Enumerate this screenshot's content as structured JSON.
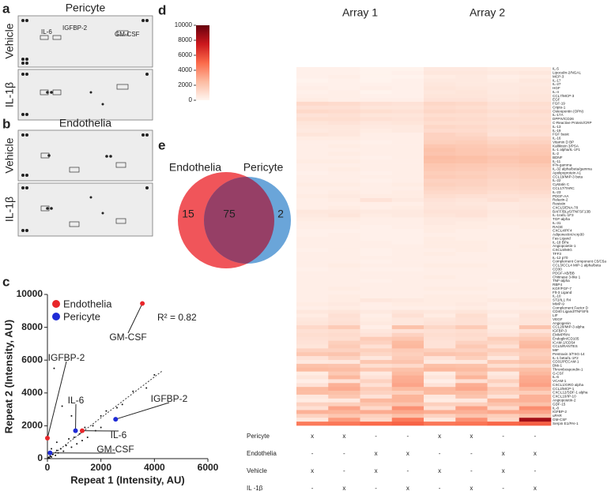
{
  "panel_letters": [
    "a",
    "b",
    "c",
    "d",
    "e"
  ],
  "blots": {
    "a": {
      "title": "Pericyte",
      "rows": [
        "Vehicle",
        "IL-1β"
      ],
      "spots": [
        "IL-6",
        "IGFBP-2",
        "GM-CSF"
      ]
    },
    "b": {
      "title": "Endothelia",
      "rows": [
        "Vehicle",
        "IL-1β"
      ]
    }
  },
  "chart_data": [
    {
      "type": "scatter",
      "xlabel": "Repeat 1 (Intensity, AU)",
      "ylabel": "Repeat 2 (Intensity, AU)",
      "xlim": [
        0,
        6000
      ],
      "ylim": [
        0,
        10000
      ],
      "xticks": [
        0,
        2000,
        4000,
        6000
      ],
      "yticks": [
        0,
        2000,
        4000,
        6000,
        8000,
        10000
      ],
      "annotation": "R² = 0.82",
      "legend": "top-left",
      "fit_line": {
        "x": [
          0,
          4300
        ],
        "y": [
          0,
          5350
        ]
      },
      "other_points": {
        "color": "#111",
        "x": [
          20,
          50,
          80,
          100,
          150,
          200,
          300,
          350,
          400,
          500,
          600,
          700,
          800,
          900,
          1000,
          1100,
          1200,
          1400,
          1500,
          1700,
          1800,
          2000,
          2200,
          2600,
          2800,
          3200,
          3700,
          4000,
          350,
          150,
          900,
          250,
          550,
          2000,
          1300
        ],
        "y": [
          30,
          80,
          40,
          150,
          100,
          250,
          200,
          500,
          350,
          600,
          450,
          800,
          1200,
          700,
          1300,
          900,
          1500,
          1900,
          1300,
          2000,
          1700,
          2600,
          2900,
          3100,
          3300,
          4100,
          4300,
          5100,
          1000,
          600,
          2600,
          5500,
          3200,
          1900,
          1100
        ]
      },
      "series": [
        {
          "name": "Endothelia",
          "color": "#e8262a",
          "x": [
            3550,
            0,
            1300
          ],
          "y": [
            9450,
            1250,
            1700
          ],
          "labels": [
            "GM-CSF",
            "IGFBP-2",
            "IL-6"
          ]
        },
        {
          "name": "Pericyte",
          "color": "#1f2bd6",
          "x": [
            2550,
            1050,
            100
          ],
          "y": [
            2400,
            1700,
            350
          ],
          "labels": [
            "IGFBP-2",
            "IL-6",
            "GM-CSF"
          ]
        }
      ]
    },
    {
      "type": "heatmap",
      "columns_titles": [
        "Array 1",
        "Array 2"
      ],
      "clim": [
        0,
        10000
      ],
      "cticks": [
        0,
        2000,
        4000,
        6000,
        8000,
        10000
      ],
      "colors": [
        "#fff5f0",
        "#fcbba1",
        "#fb6a4a",
        "#cb181d",
        "#67000d"
      ],
      "rows": [
        "IL-5",
        "Lipocalin-2/NGAL",
        "MCP-3",
        "IL-17",
        "IL-27",
        "HGF",
        "IL-4",
        "CCL7/MCP-3",
        "EGF",
        "FGF-19",
        "Cripto-1",
        "Osteopontin (OPN)",
        "IL-17A",
        "DPPIV/CD26",
        "C-Reactive Protein/CRP",
        "IL-13",
        "IL-19",
        "FGF basic",
        "IL-16",
        "Vitamin D BP",
        "Kallikrein 3/PSA",
        "IL-1 alpha/IL-1F1",
        "IL-2",
        "BDNF",
        "IL-11",
        "IFN-gamma",
        "IL-32 alpha/beta/gamma",
        "Apolipoprotein A1",
        "CCL19/MIP-3 beta",
        "IL-22",
        "Cystatin C",
        "CCL17/TARC",
        "IL-23",
        "PDGF-AA",
        "Relaxin-2",
        "Resistin",
        "CXCL5/ENA-78",
        "BAFF/BLyS/TNFSF13B",
        "IL-1ra/IL-1F3",
        "TGF-alpha",
        "IL-31",
        "RAGE",
        "CXCL4/PF4",
        "Adiponectin/Acrp30",
        "Fas Ligand",
        "IL-18 BPa",
        "Angiopoietin-1",
        "CXCL9/MIG",
        "TFF3",
        "IL-12 p70",
        "Complement Component C5/C5a",
        "CCL3/CCL4 MIP-1 alpha/beta",
        "CD30",
        "PDGF-AB/BB",
        "Chitinase 3-like 1",
        "TNF-alpha",
        "RBP4",
        "KGF/FGF-7",
        "Flt-3 Ligand",
        "IL-10",
        "ST2/IL1 R4",
        "MMP-9",
        "Complement Factor D",
        "CD40 Ligand/TNFSF5",
        "LIF",
        "VEGF",
        "Angiogenin",
        "CCL20/MIP-3 alpha",
        "IGFBP-3",
        "EMMPRIN",
        "Endoglin/CD105",
        "ICAM-1/CD54",
        "CCL5/RANTES",
        "MIF",
        "Pentraxin 3/TSG-14",
        "IL-1 beta/IL-1F2",
        "CD31/PECAM-1",
        "Dkk-1",
        "Thrombospondin-1",
        "G-CSF",
        "IL-6",
        "VCAM-1",
        "CXCL1/GRO alpha",
        "CCL2/MCP-1",
        "CXCL12/SDF-1 alpha",
        "CXCL10/IP-10",
        "Angiopoietin-2",
        "GDF-15",
        "IL-8",
        "IGFBP-2",
        "uPAR",
        "GM-CSF",
        "Serpin E1/PAI-1"
      ],
      "values": [
        [
          200,
          200,
          100,
          100,
          500,
          500,
          400,
          400
        ],
        [
          200,
          200,
          100,
          200,
          600,
          600,
          500,
          600
        ],
        [
          200,
          300,
          100,
          100,
          400,
          500,
          300,
          400
        ],
        [
          100,
          200,
          100,
          200,
          500,
          500,
          400,
          600
        ],
        [
          200,
          200,
          200,
          200,
          600,
          500,
          500,
          500
        ],
        [
          300,
          200,
          300,
          200,
          700,
          600,
          500,
          600
        ],
        [
          200,
          300,
          100,
          200,
          600,
          700,
          500,
          600
        ],
        [
          300,
          300,
          200,
          200,
          700,
          700,
          600,
          700
        ],
        [
          400,
          300,
          300,
          300,
          800,
          800,
          600,
          700
        ],
        [
          1200,
          1100,
          900,
          800,
          1300,
          1200,
          900,
          1000
        ],
        [
          900,
          900,
          700,
          700,
          1100,
          1000,
          800,
          900
        ],
        [
          1200,
          1100,
          1000,
          900,
          1300,
          1200,
          1000,
          1100
        ],
        [
          800,
          900,
          700,
          700,
          1000,
          1000,
          800,
          900
        ],
        [
          1000,
          1000,
          900,
          800,
          1200,
          1100,
          1000,
          1000
        ],
        [
          700,
          800,
          600,
          700,
          1000,
          1000,
          900,
          900
        ],
        [
          600,
          600,
          500,
          500,
          1300,
          1200,
          1000,
          1100
        ],
        [
          500,
          600,
          400,
          500,
          1100,
          1100,
          900,
          1000
        ],
        [
          700,
          600,
          300,
          300,
          1500,
          1300,
          800,
          900
        ],
        [
          400,
          400,
          300,
          300,
          1500,
          1500,
          1200,
          1300
        ],
        [
          300,
          300,
          200,
          300,
          1600,
          1700,
          1400,
          1500
        ],
        [
          300,
          400,
          300,
          300,
          2000,
          1900,
          1700,
          1800
        ],
        [
          300,
          300,
          300,
          300,
          2200,
          2000,
          1900,
          1900
        ],
        [
          300,
          400,
          300,
          300,
          2100,
          2000,
          1800,
          2000
        ],
        [
          300,
          300,
          200,
          300,
          2400,
          2300,
          2100,
          2200
        ],
        [
          400,
          400,
          300,
          300,
          2300,
          2200,
          2000,
          2200
        ],
        [
          300,
          300,
          300,
          300,
          2000,
          1900,
          1800,
          1900
        ],
        [
          300,
          400,
          300,
          300,
          1900,
          1800,
          1600,
          1700
        ],
        [
          200,
          300,
          200,
          300,
          1700,
          1600,
          1500,
          1600
        ],
        [
          300,
          300,
          300,
          300,
          1800,
          1700,
          1500,
          1600
        ],
        [
          300,
          300,
          200,
          300,
          1500,
          1500,
          1300,
          1400
        ],
        [
          400,
          400,
          300,
          400,
          1600,
          1500,
          1300,
          1400
        ],
        [
          300,
          300,
          300,
          300,
          1400,
          1300,
          1200,
          1300
        ],
        [
          300,
          400,
          300,
          400,
          1200,
          1200,
          1000,
          1100
        ],
        [
          400,
          500,
          400,
          400,
          1000,
          900,
          800,
          900
        ],
        [
          300,
          400,
          800,
          500,
          800,
          700,
          900,
          700
        ],
        [
          300,
          300,
          300,
          300,
          700,
          600,
          500,
          600
        ],
        [
          300,
          400,
          300,
          400,
          700,
          700,
          500,
          600
        ],
        [
          600,
          600,
          500,
          500,
          800,
          800,
          600,
          700
        ],
        [
          500,
          700,
          400,
          500,
          700,
          800,
          500,
          600
        ],
        [
          400,
          400,
          300,
          300,
          500,
          500,
          400,
          400
        ],
        [
          300,
          300,
          300,
          300,
          500,
          400,
          400,
          400
        ],
        [
          300,
          300,
          200,
          300,
          400,
          400,
          300,
          400
        ],
        [
          200,
          200,
          200,
          200,
          400,
          300,
          300,
          300
        ],
        [
          200,
          300,
          200,
          200,
          300,
          300,
          300,
          300
        ],
        [
          300,
          300,
          200,
          200,
          400,
          300,
          300,
          300
        ],
        [
          300,
          300,
          300,
          200,
          400,
          400,
          300,
          300
        ],
        [
          300,
          300,
          300,
          300,
          400,
          400,
          300,
          400
        ],
        [
          200,
          300,
          200,
          300,
          300,
          400,
          300,
          300
        ],
        [
          300,
          300,
          200,
          300,
          400,
          300,
          300,
          300
        ],
        [
          300,
          300,
          300,
          300,
          300,
          300,
          300,
          300
        ],
        [
          300,
          300,
          200,
          300,
          300,
          300,
          300,
          300
        ],
        [
          300,
          400,
          300,
          300,
          400,
          400,
          300,
          300
        ],
        [
          200,
          300,
          200,
          200,
          300,
          300,
          300,
          300
        ],
        [
          300,
          300,
          300,
          300,
          300,
          300,
          300,
          300
        ],
        [
          300,
          300,
          300,
          300,
          400,
          300,
          300,
          300
        ],
        [
          300,
          300,
          200,
          300,
          300,
          300,
          200,
          300
        ],
        [
          300,
          300,
          300,
          300,
          300,
          300,
          300,
          300
        ],
        [
          300,
          400,
          300,
          300,
          400,
          400,
          300,
          300
        ],
        [
          300,
          300,
          300,
          300,
          300,
          300,
          300,
          300
        ],
        [
          300,
          400,
          300,
          300,
          400,
          400,
          300,
          300
        ],
        [
          300,
          400,
          600,
          500,
          400,
          400,
          500,
          500
        ],
        [
          400,
          500,
          300,
          400,
          400,
          500,
          300,
          400
        ],
        [
          300,
          400,
          300,
          300,
          300,
          400,
          300,
          300
        ],
        [
          600,
          700,
          500,
          700,
          600,
          700,
          500,
          600
        ],
        [
          400,
          900,
          300,
          900,
          400,
          1000,
          300,
          800
        ],
        [
          600,
          800,
          400,
          600,
          700,
          900,
          500,
          700
        ],
        [
          700,
          900,
          500,
          600,
          800,
          900,
          600,
          700
        ],
        [
          1200,
          1800,
          300,
          2200,
          1300,
          1800,
          400,
          2100
        ],
        [
          900,
          1000,
          600,
          800,
          900,
          1000,
          600,
          800
        ],
        [
          1000,
          1100,
          800,
          1500,
          1000,
          1100,
          800,
          1400
        ],
        [
          900,
          1000,
          1800,
          2000,
          900,
          1000,
          1700,
          1900
        ],
        [
          800,
          1600,
          1500,
          2500,
          800,
          1500,
          1400,
          2400
        ],
        [
          700,
          1800,
          900,
          2600,
          800,
          1900,
          900,
          2600
        ],
        [
          1500,
          1500,
          1600,
          1800,
          1600,
          1500,
          1700,
          1800
        ],
        [
          2000,
          2100,
          1300,
          1600,
          2100,
          2000,
          1300,
          1600
        ],
        [
          800,
          1500,
          600,
          1800,
          800,
          1600,
          600,
          1900
        ],
        [
          500,
          600,
          2000,
          2100,
          500,
          600,
          2000,
          2200
        ],
        [
          2200,
          2100,
          1000,
          1200,
          2300,
          2200,
          1000,
          1300
        ],
        [
          2500,
          2400,
          2000,
          2200,
          2600,
          2500,
          2100,
          2300
        ],
        [
          400,
          1900,
          500,
          2500,
          400,
          2000,
          500,
          2600
        ],
        [
          700,
          2600,
          800,
          2900,
          700,
          2700,
          800,
          3000
        ],
        [
          300,
          800,
          1500,
          3000,
          300,
          900,
          1600,
          3100
        ],
        [
          800,
          2800,
          900,
          3200,
          800,
          2900,
          900,
          3300
        ],
        [
          2500,
          3000,
          1800,
          2500,
          2600,
          3100,
          1900,
          2600
        ],
        [
          2400,
          2300,
          1500,
          1600,
          2500,
          2400,
          1600,
          1700
        ],
        [
          600,
          2000,
          800,
          2700,
          600,
          2100,
          800,
          2800
        ],
        [
          400,
          500,
          2600,
          2700,
          400,
          500,
          2700,
          2800
        ],
        [
          1500,
          1600,
          2000,
          2100,
          1600,
          1600,
          2100,
          2200
        ],
        [
          900,
          3200,
          1200,
          3800,
          900,
          3300,
          1200,
          3900
        ],
        [
          2800,
          2700,
          3000,
          3100,
          2900,
          2800,
          3100,
          3200
        ],
        [
          1500,
          2000,
          1600,
          2200,
          1500,
          2100,
          1700,
          2300
        ],
        [
          600,
          3500,
          1200,
          4500,
          600,
          3800,
          1300,
          8500
        ],
        [
          4500,
          4600,
          5000,
          5200,
          4600,
          4700,
          5100,
          5300
        ]
      ],
      "design": [
        {
          "label": "Pericyte",
          "cells": [
            "x",
            "x",
            "-",
            "-",
            "x",
            "x",
            "-",
            "-"
          ]
        },
        {
          "label": "Endothelia",
          "cells": [
            "-",
            "-",
            "x",
            "x",
            "-",
            "-",
            "x",
            "x"
          ]
        },
        {
          "label": "Vehicle",
          "cells": [
            "x",
            "-",
            "x",
            "-",
            "x",
            "-",
            "x",
            "-"
          ]
        },
        {
          "label": "IL -1β",
          "cells": [
            "-",
            "x",
            "-",
            "x",
            "-",
            "x",
            "-",
            "x"
          ]
        }
      ]
    },
    {
      "type": "venn",
      "sets": [
        {
          "name": "Endothelia",
          "color": "#f0555a"
        },
        {
          "name": "Pericyte",
          "color": "#5a9bd5"
        }
      ],
      "values": [
        15,
        75,
        2
      ]
    }
  ]
}
